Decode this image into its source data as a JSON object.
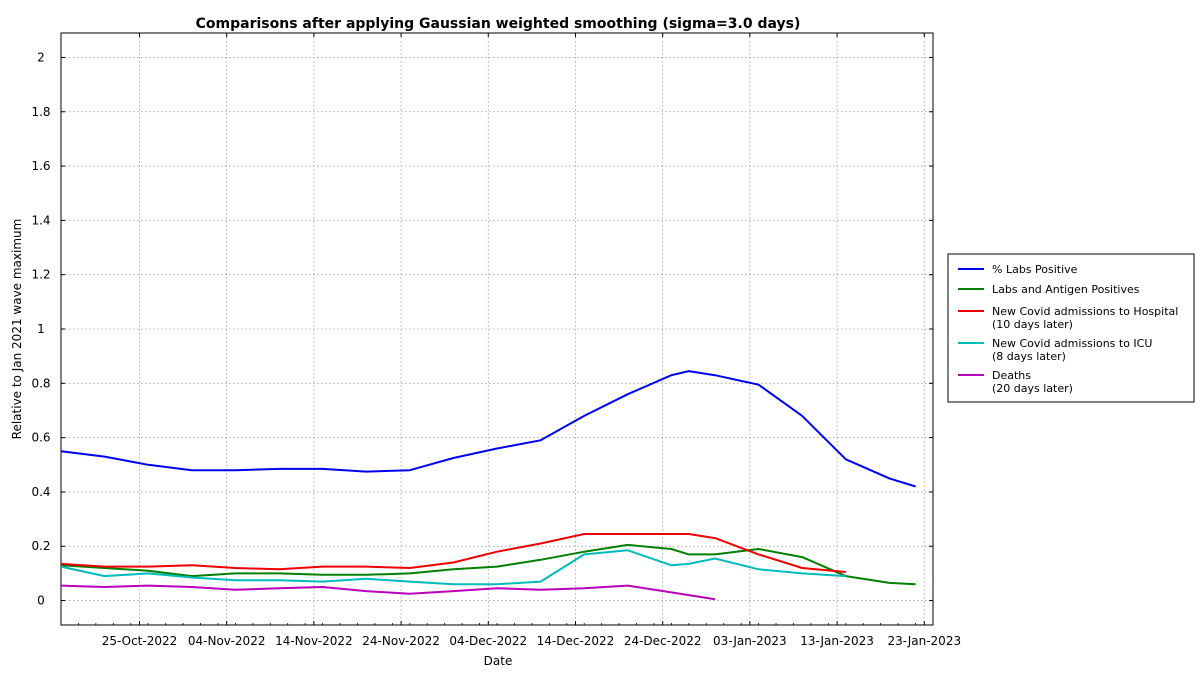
{
  "chart_data": {
    "type": "line",
    "title": "Comparisons after applying Gaussian weighted smoothing (sigma=3.0 days)",
    "xlabel": "Date",
    "ylabel": "Relative to Jan 2021 wave maximum",
    "x_dates": [
      "2022-10-16",
      "2022-10-21",
      "2022-10-26",
      "2022-10-31",
      "2022-11-05",
      "2022-11-10",
      "2022-11-15",
      "2022-11-20",
      "2022-11-25",
      "2022-11-30",
      "2022-12-05",
      "2022-12-10",
      "2022-12-15",
      "2022-12-20",
      "2022-12-25",
      "2022-12-27",
      "2022-12-30",
      "2023-01-04",
      "2023-01-09",
      "2023-01-14",
      "2023-01-19",
      "2023-01-22"
    ],
    "xlim": [
      "2022-10-16",
      "2023-01-24"
    ],
    "ylim": [
      -0.09,
      2.09
    ],
    "yticks": [
      0,
      0.2,
      0.4,
      0.6,
      0.8,
      1,
      1.2,
      1.4,
      1.6,
      1.8,
      2
    ],
    "ytick_labels": [
      "0",
      "0.2",
      "0.4",
      "0.6",
      "0.8",
      "1",
      "1.2",
      "1.4",
      "1.6",
      "1.8",
      "2"
    ],
    "xticks": [
      "2022-10-25",
      "2022-11-04",
      "2022-11-14",
      "2022-11-24",
      "2022-12-04",
      "2022-12-14",
      "2022-12-24",
      "2023-01-03",
      "2023-01-13",
      "2023-01-23"
    ],
    "xtick_labels": [
      "25-Oct-2022",
      "04-Nov-2022",
      "14-Nov-2022",
      "24-Nov-2022",
      "04-Dec-2022",
      "14-Dec-2022",
      "24-Dec-2022",
      "03-Jan-2023",
      "13-Jan-2023",
      "23-Jan-2023"
    ],
    "grid": true,
    "legend_position": "right-outside",
    "series": [
      {
        "name": "% Labs Positive",
        "color": "#0000ee",
        "values": [
          0.55,
          0.53,
          0.5,
          0.48,
          0.48,
          0.485,
          0.485,
          0.475,
          0.48,
          0.525,
          0.56,
          0.59,
          0.68,
          0.76,
          0.83,
          0.845,
          0.83,
          0.795,
          0.68,
          0.52,
          0.45,
          0.42
        ]
      },
      {
        "name": "Labs and Antigen Positives",
        "color": "#008000",
        "values": [
          0.13,
          0.12,
          0.11,
          0.09,
          0.1,
          0.1,
          0.095,
          0.095,
          0.1,
          0.115,
          0.125,
          0.15,
          0.18,
          0.205,
          0.19,
          0.17,
          0.17,
          0.19,
          0.16,
          0.09,
          0.065,
          0.06
        ]
      },
      {
        "name": "New Covid admissions to Hospital\n(10 days later)",
        "color": "#ee0000",
        "values": [
          0.135,
          0.125,
          0.125,
          0.13,
          0.12,
          0.115,
          0.125,
          0.125,
          0.12,
          0.14,
          0.18,
          0.21,
          0.245,
          0.245,
          0.245,
          0.245,
          0.23,
          0.17,
          0.12,
          0.105,
          null,
          null
        ]
      },
      {
        "name": "New Covid admissions to ICU\n(8 days later)",
        "color": "#00bbbb",
        "values": [
          0.125,
          0.09,
          0.1,
          0.085,
          0.075,
          0.075,
          0.07,
          0.08,
          0.07,
          0.06,
          0.06,
          0.07,
          0.17,
          0.185,
          0.13,
          0.135,
          0.155,
          0.115,
          0.1,
          0.09,
          null,
          null
        ]
      },
      {
        "name": "Deaths\n(20 days later)",
        "color": "#bb00bb",
        "values": [
          0.055,
          0.05,
          0.055,
          0.05,
          0.04,
          0.045,
          0.05,
          0.035,
          0.025,
          0.035,
          0.045,
          0.04,
          0.045,
          0.055,
          0.03,
          0.02,
          0.005,
          null,
          null,
          null,
          null,
          null
        ]
      }
    ]
  }
}
